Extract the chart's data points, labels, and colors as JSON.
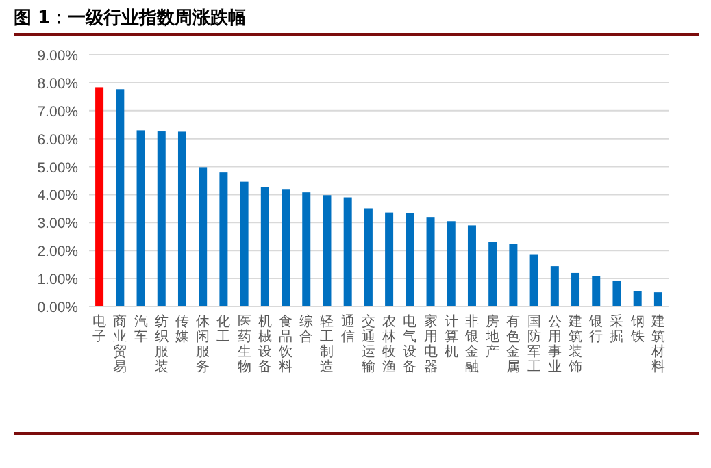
{
  "chart_data": {
    "type": "bar",
    "title": "图 1：一级行业指数周涨跌幅",
    "categories": [
      "电子",
      "商业贸易",
      "汽车",
      "纺织服装",
      "传媒",
      "休闲服务",
      "化工",
      "医药生物",
      "机械设备",
      "食品饮料",
      "综合",
      "轻工制造",
      "通信",
      "交通运输",
      "农林牧渔",
      "电气设备",
      "家用电器",
      "计算机",
      "非银金融",
      "房地产",
      "有色金属",
      "国防军工",
      "公用事业",
      "建筑装饰",
      "银行",
      "采掘",
      "钢铁",
      "建筑材料"
    ],
    "values": [
      7.84,
      7.77,
      6.3,
      6.26,
      6.25,
      4.98,
      4.79,
      4.46,
      4.26,
      4.2,
      4.08,
      3.98,
      3.9,
      3.51,
      3.36,
      3.33,
      3.2,
      3.05,
      2.9,
      2.3,
      2.23,
      1.87,
      1.44,
      1.2,
      1.1,
      0.93,
      0.54,
      0.51
    ],
    "colors": [
      "#ff0000",
      "#0070c0",
      "#0070c0",
      "#0070c0",
      "#0070c0",
      "#0070c0",
      "#0070c0",
      "#0070c0",
      "#0070c0",
      "#0070c0",
      "#0070c0",
      "#0070c0",
      "#0070c0",
      "#0070c0",
      "#0070c0",
      "#0070c0",
      "#0070c0",
      "#0070c0",
      "#0070c0",
      "#0070c0",
      "#0070c0",
      "#0070c0",
      "#0070c0",
      "#0070c0",
      "#0070c0",
      "#0070c0",
      "#0070c0",
      "#0070c0"
    ],
    "ylim": [
      0,
      9
    ],
    "yticks": [
      {
        "value": 0,
        "label": "0.00%"
      },
      {
        "value": 1,
        "label": "1.00%"
      },
      {
        "value": 2,
        "label": "2.00%"
      },
      {
        "value": 3,
        "label": "3.00%"
      },
      {
        "value": 4,
        "label": "4.00%"
      },
      {
        "value": 5,
        "label": "5.00%"
      },
      {
        "value": 6,
        "label": "6.00%"
      },
      {
        "value": 7,
        "label": "7.00%"
      },
      {
        "value": 8,
        "label": "8.00%"
      },
      {
        "value": 9,
        "label": "9.00%"
      }
    ],
    "grid": "y"
  }
}
